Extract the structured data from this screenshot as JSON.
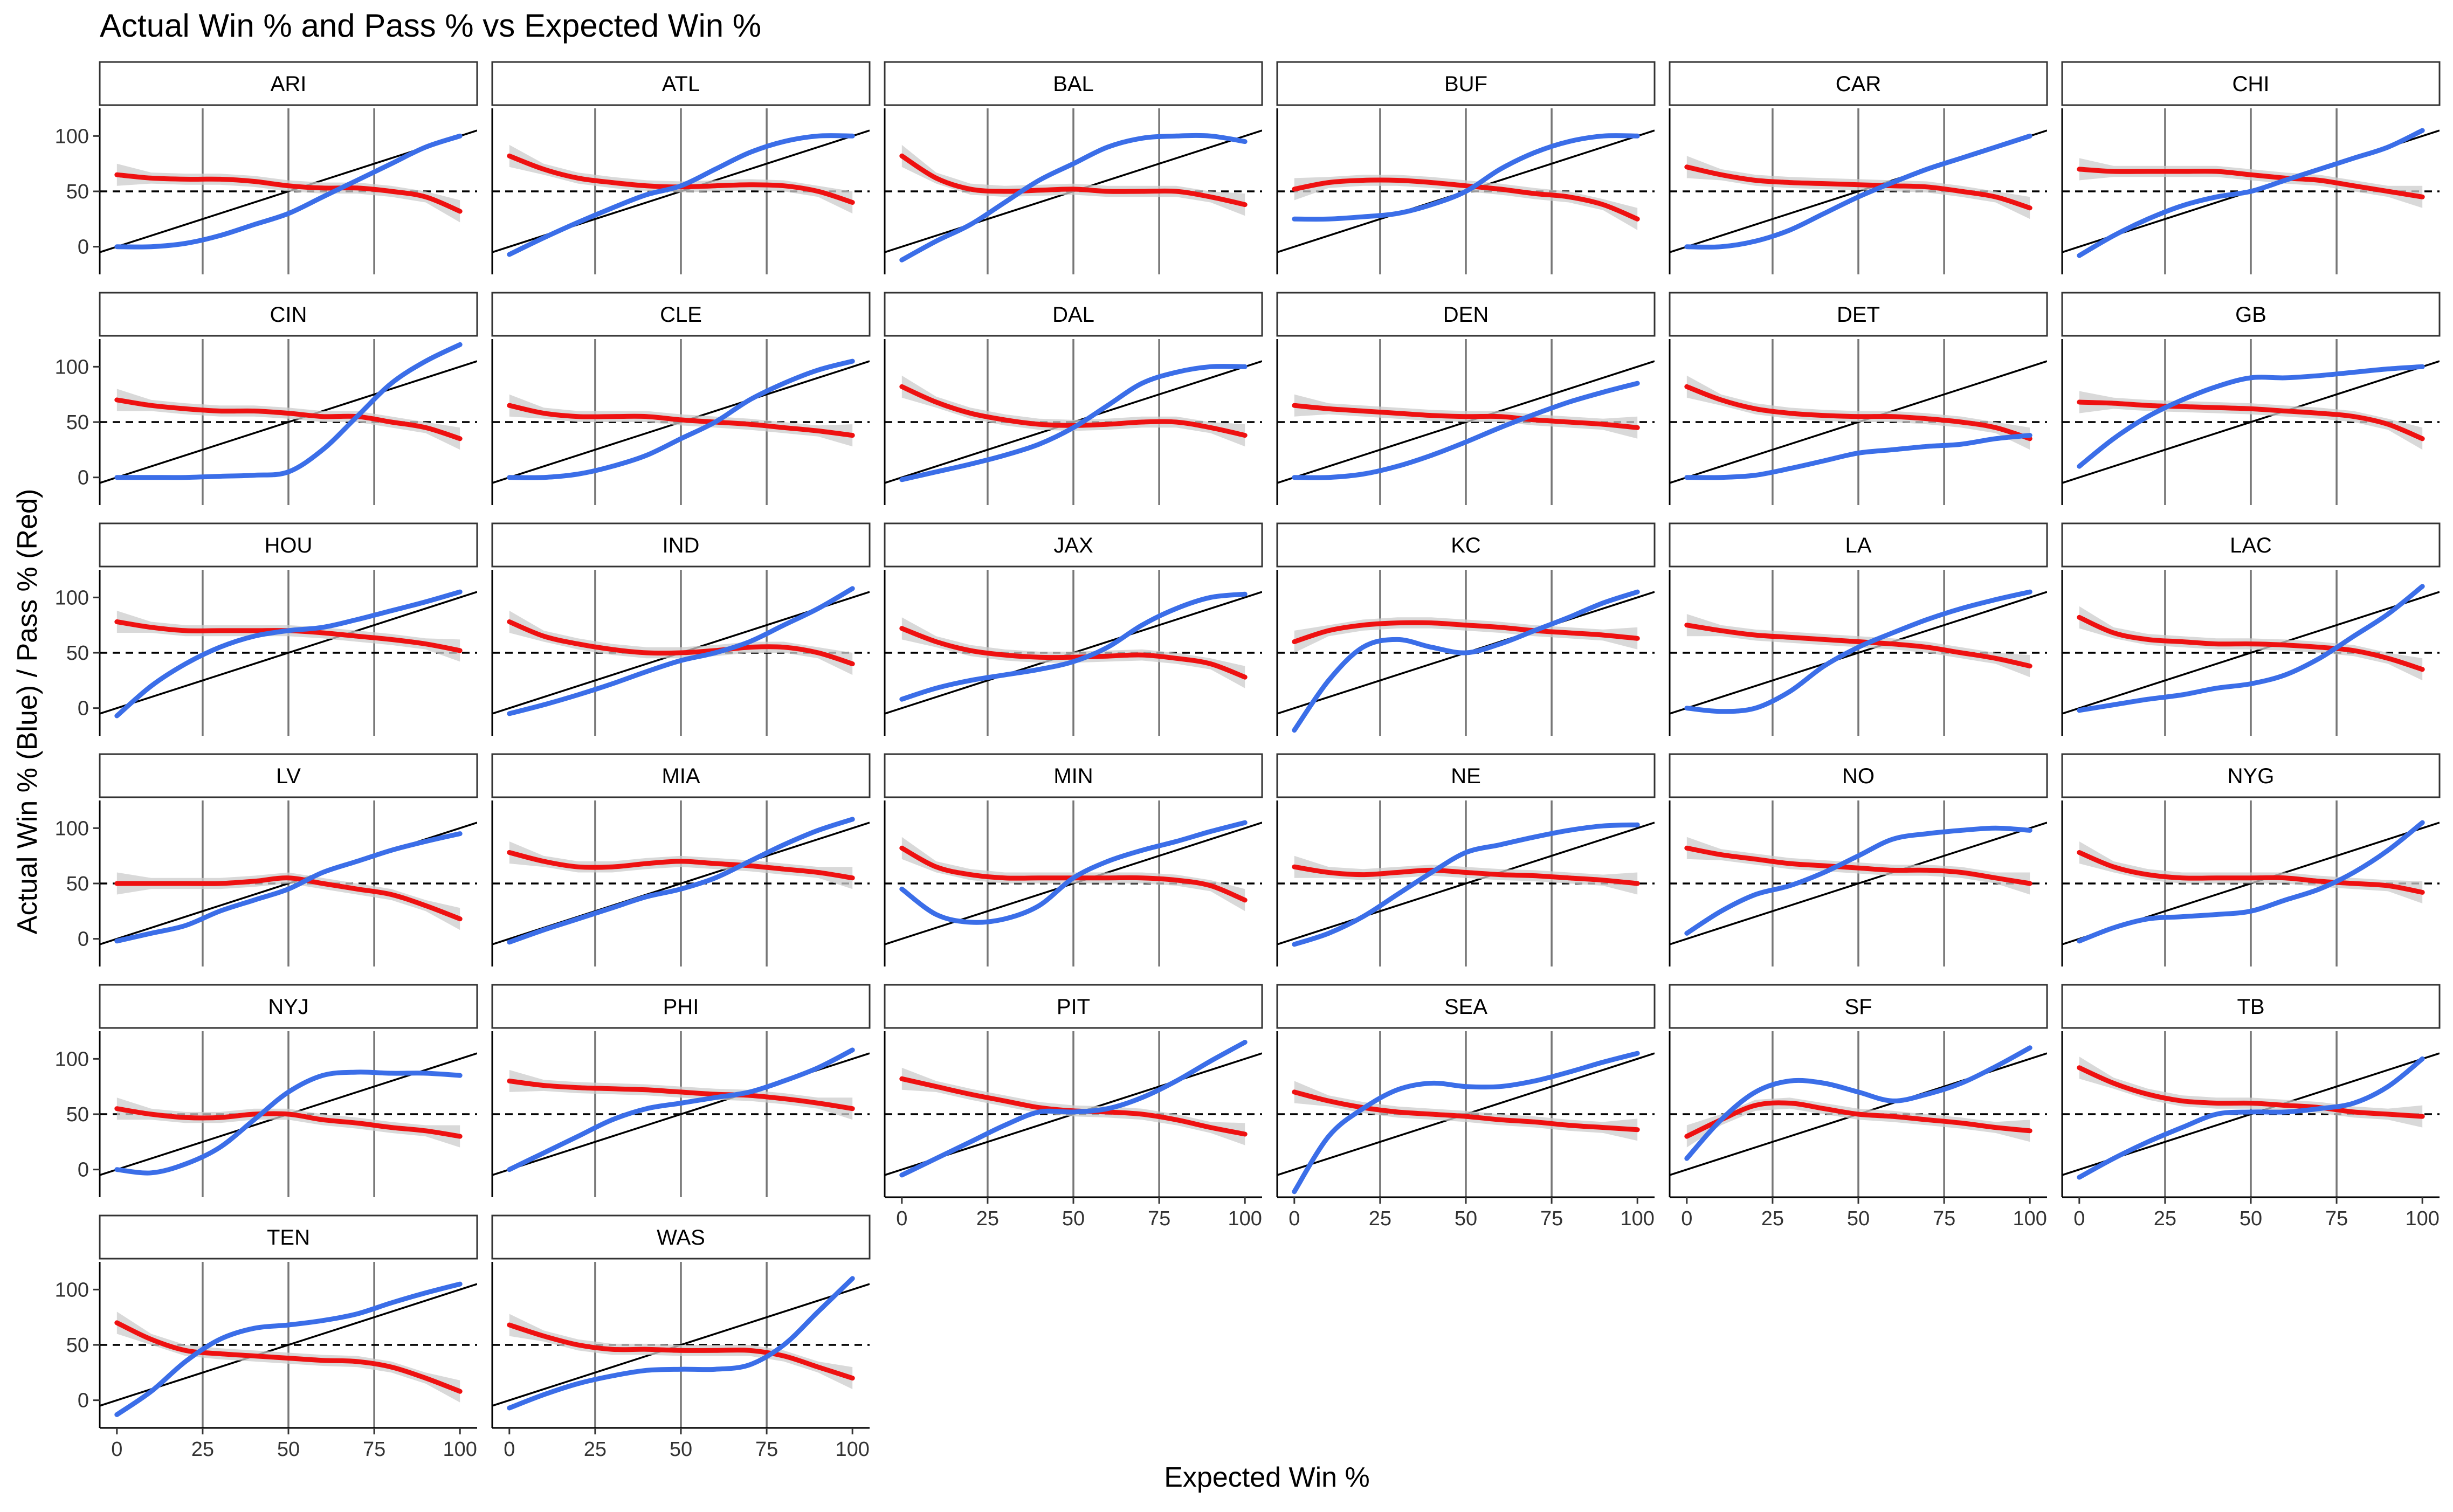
{
  "chart_data": {
    "type": "line",
    "title": "Actual Win % and Pass % vs Expected Win %",
    "xlabel": "Expected Win %",
    "ylabel": "Actual Win % (Blue) / Pass % (Red)",
    "xlim": [
      -5,
      105
    ],
    "ylim": [
      -25,
      125
    ],
    "x_ticks": [
      0,
      25,
      50,
      75,
      100
    ],
    "y_ticks": [
      0,
      50,
      100
    ],
    "vlines": [
      25,
      50,
      75
    ],
    "hline": 50,
    "reference_line": "y = x",
    "grid": false,
    "legend": "none",
    "colors": {
      "actual_win": "#3b6ee8",
      "pass": "#ee1111",
      "band": "#cccccc",
      "reference": "#000000"
    },
    "x": [
      0,
      10,
      20,
      30,
      40,
      50,
      60,
      70,
      80,
      90,
      100
    ],
    "series_names": [
      "Actual Win %",
      "Pass %"
    ],
    "panels": [
      {
        "team": "ARI",
        "win": [
          0,
          0,
          3,
          10,
          20,
          30,
          45,
          60,
          75,
          90,
          100
        ],
        "pass": [
          65,
          62,
          61,
          61,
          59,
          55,
          53,
          53,
          50,
          45,
          32
        ]
      },
      {
        "team": "ATL",
        "win": [
          -7,
          8,
          22,
          35,
          47,
          55,
          70,
          85,
          95,
          100,
          100
        ],
        "pass": [
          82,
          70,
          62,
          58,
          55,
          54,
          55,
          56,
          55,
          50,
          40
        ]
      },
      {
        "team": "BAL",
        "win": [
          -12,
          5,
          20,
          40,
          60,
          75,
          90,
          98,
          100,
          100,
          95
        ],
        "pass": [
          82,
          62,
          52,
          50,
          51,
          52,
          50,
          50,
          50,
          45,
          38
        ]
      },
      {
        "team": "BUF",
        "win": [
          25,
          25,
          27,
          30,
          38,
          50,
          70,
          85,
          95,
          100,
          100
        ],
        "pass": [
          52,
          58,
          60,
          60,
          58,
          55,
          52,
          48,
          45,
          38,
          25
        ]
      },
      {
        "team": "CAR",
        "win": [
          0,
          0,
          5,
          15,
          30,
          45,
          58,
          70,
          80,
          90,
          100
        ],
        "pass": [
          72,
          65,
          60,
          58,
          57,
          56,
          55,
          54,
          50,
          45,
          35
        ]
      },
      {
        "team": "CHI",
        "win": [
          -8,
          10,
          25,
          37,
          45,
          50,
          60,
          70,
          80,
          90,
          105
        ],
        "pass": [
          70,
          68,
          68,
          68,
          68,
          65,
          62,
          60,
          55,
          50,
          45
        ]
      },
      {
        "team": "CIN",
        "win": [
          0,
          0,
          0,
          1,
          2,
          5,
          25,
          55,
          85,
          105,
          120
        ],
        "pass": [
          70,
          65,
          62,
          60,
          60,
          58,
          55,
          55,
          50,
          45,
          35
        ]
      },
      {
        "team": "CLE",
        "win": [
          0,
          0,
          3,
          10,
          20,
          35,
          50,
          70,
          85,
          97,
          105
        ],
        "pass": [
          65,
          58,
          55,
          55,
          55,
          52,
          50,
          48,
          45,
          42,
          38
        ]
      },
      {
        "team": "DAL",
        "win": [
          -2,
          5,
          12,
          20,
          30,
          45,
          65,
          85,
          95,
          100,
          100
        ],
        "pass": [
          82,
          68,
          58,
          52,
          48,
          47,
          48,
          50,
          50,
          45,
          38
        ]
      },
      {
        "team": "DEN",
        "win": [
          0,
          0,
          3,
          10,
          20,
          32,
          45,
          57,
          68,
          77,
          85
        ],
        "pass": [
          65,
          62,
          60,
          58,
          56,
          55,
          55,
          52,
          50,
          48,
          45
        ]
      },
      {
        "team": "DET",
        "win": [
          0,
          0,
          2,
          8,
          15,
          22,
          25,
          28,
          30,
          35,
          38
        ],
        "pass": [
          82,
          70,
          62,
          58,
          56,
          55,
          55,
          53,
          50,
          45,
          35
        ]
      },
      {
        "team": "GB",
        "win": [
          10,
          35,
          55,
          70,
          82,
          90,
          90,
          92,
          95,
          98,
          100
        ],
        "pass": [
          68,
          67,
          65,
          64,
          63,
          62,
          60,
          58,
          55,
          48,
          35
        ]
      },
      {
        "team": "HOU",
        "win": [
          -7,
          20,
          40,
          55,
          65,
          70,
          73,
          80,
          88,
          96,
          105
        ],
        "pass": [
          78,
          73,
          70,
          70,
          70,
          70,
          68,
          65,
          62,
          58,
          52
        ]
      },
      {
        "team": "IND",
        "win": [
          -5,
          3,
          12,
          22,
          33,
          43,
          50,
          60,
          75,
          90,
          108
        ],
        "pass": [
          78,
          65,
          58,
          53,
          50,
          50,
          52,
          55,
          55,
          50,
          40
        ]
      },
      {
        "team": "JAX",
        "win": [
          8,
          18,
          25,
          30,
          35,
          42,
          55,
          75,
          90,
          100,
          103
        ],
        "pass": [
          72,
          60,
          52,
          48,
          46,
          46,
          47,
          48,
          45,
          40,
          28
        ]
      },
      {
        "team": "KC",
        "win": [
          -20,
          25,
          55,
          62,
          55,
          50,
          58,
          70,
          82,
          95,
          105
        ],
        "pass": [
          60,
          70,
          75,
          77,
          77,
          75,
          73,
          70,
          68,
          66,
          63
        ]
      },
      {
        "team": "LA",
        "win": [
          0,
          -3,
          0,
          15,
          38,
          55,
          68,
          80,
          90,
          98,
          105
        ],
        "pass": [
          75,
          70,
          66,
          64,
          62,
          60,
          58,
          55,
          50,
          45,
          38
        ]
      },
      {
        "team": "LAC",
        "win": [
          -2,
          3,
          8,
          12,
          18,
          22,
          30,
          45,
          65,
          85,
          110
        ],
        "pass": [
          82,
          68,
          62,
          60,
          58,
          58,
          57,
          55,
          52,
          45,
          35
        ]
      },
      {
        "team": "LV",
        "win": [
          -2,
          5,
          12,
          25,
          35,
          45,
          60,
          70,
          80,
          88,
          95
        ],
        "pass": [
          50,
          50,
          50,
          50,
          52,
          55,
          50,
          45,
          40,
          30,
          18
        ]
      },
      {
        "team": "MIA",
        "win": [
          -3,
          8,
          18,
          28,
          38,
          45,
          55,
          70,
          85,
          98,
          108
        ],
        "pass": [
          78,
          70,
          65,
          65,
          68,
          70,
          68,
          66,
          63,
          60,
          55
        ]
      },
      {
        "team": "MIN",
        "win": [
          45,
          22,
          15,
          18,
          30,
          55,
          70,
          80,
          88,
          97,
          105
        ],
        "pass": [
          82,
          65,
          58,
          55,
          55,
          55,
          55,
          55,
          53,
          48,
          35
        ]
      },
      {
        "team": "NE",
        "win": [
          -5,
          5,
          20,
          40,
          60,
          78,
          85,
          92,
          98,
          102,
          103
        ],
        "pass": [
          65,
          60,
          58,
          60,
          62,
          60,
          58,
          57,
          55,
          53,
          50
        ]
      },
      {
        "team": "NO",
        "win": [
          5,
          25,
          40,
          48,
          60,
          75,
          90,
          95,
          98,
          100,
          98
        ],
        "pass": [
          82,
          76,
          72,
          68,
          66,
          64,
          62,
          62,
          60,
          55,
          50
        ]
      },
      {
        "team": "NYG",
        "win": [
          -2,
          10,
          18,
          20,
          22,
          25,
          35,
          45,
          60,
          80,
          105
        ],
        "pass": [
          78,
          65,
          58,
          55,
          55,
          55,
          55,
          52,
          50,
          48,
          42
        ]
      },
      {
        "team": "NYJ",
        "win": [
          0,
          -3,
          5,
          20,
          45,
          70,
          85,
          88,
          87,
          87,
          85
        ],
        "pass": [
          55,
          50,
          47,
          47,
          50,
          50,
          45,
          42,
          38,
          35,
          30
        ]
      },
      {
        "team": "PHI",
        "win": [
          0,
          15,
          30,
          45,
          55,
          60,
          65,
          70,
          80,
          92,
          108
        ],
        "pass": [
          80,
          76,
          74,
          73,
          72,
          70,
          68,
          67,
          64,
          60,
          55
        ]
      },
      {
        "team": "PIT",
        "win": [
          -5,
          10,
          25,
          40,
          52,
          52,
          55,
          65,
          80,
          98,
          115
        ],
        "pass": [
          82,
          75,
          68,
          62,
          56,
          53,
          52,
          50,
          45,
          38,
          32
        ]
      },
      {
        "team": "SEA",
        "win": [
          -20,
          30,
          55,
          72,
          78,
          75,
          75,
          80,
          88,
          97,
          105
        ],
        "pass": [
          70,
          62,
          56,
          52,
          50,
          48,
          45,
          43,
          40,
          38,
          36
        ]
      },
      {
        "team": "SF",
        "win": [
          10,
          45,
          70,
          80,
          78,
          70,
          62,
          68,
          78,
          93,
          110
        ],
        "pass": [
          30,
          45,
          58,
          60,
          55,
          50,
          48,
          45,
          42,
          38,
          35
        ]
      },
      {
        "team": "TB",
        "win": [
          -7,
          10,
          25,
          38,
          50,
          52,
          52,
          55,
          60,
          75,
          100
        ],
        "pass": [
          92,
          78,
          68,
          62,
          60,
          60,
          58,
          56,
          52,
          50,
          48
        ]
      },
      {
        "team": "TEN",
        "win": [
          -13,
          8,
          35,
          55,
          65,
          68,
          72,
          78,
          88,
          97,
          105
        ],
        "pass": [
          70,
          55,
          45,
          42,
          40,
          38,
          36,
          35,
          30,
          20,
          8
        ]
      },
      {
        "team": "WAS",
        "win": [
          -7,
          5,
          15,
          22,
          27,
          28,
          28,
          32,
          50,
          80,
          110
        ],
        "pass": [
          68,
          58,
          50,
          46,
          46,
          45,
          45,
          45,
          40,
          30,
          20
        ]
      }
    ]
  }
}
